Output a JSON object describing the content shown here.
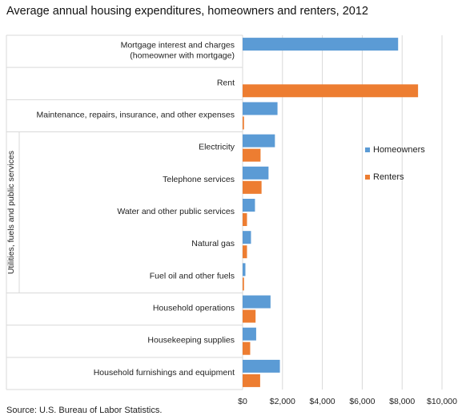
{
  "title": "Average annual housing expenditures, homeowners and renters, 2012",
  "source": "Source: U.S. Bureau of Labor Statistics.",
  "colors": {
    "homeowners": "#5B9BD5",
    "renters": "#ED7D31",
    "grid": "#D9D9D9"
  },
  "chart_data": {
    "type": "bar",
    "orientation": "horizontal",
    "categories": [
      "Mortgage interest and charges (homeowner with mortgage)",
      "Rent",
      "Maintenance, repairs, insurance, and other expenses",
      "Electricity",
      "Telephone services",
      "Water and other public services",
      "Natural gas",
      "Fuel oil and other fuels",
      "Household operations",
      "Housekeeping supplies",
      "Household furnishings and equipment"
    ],
    "category_lines": [
      [
        "Mortgage interest and charges",
        "(homeowner with mortgage)"
      ],
      [
        "Rent"
      ],
      [
        "Maintenance, repairs, insurance, and other expenses"
      ],
      [
        "Electricity"
      ],
      [
        "Telephone services"
      ],
      [
        "Water and other public services"
      ],
      [
        "Natural gas"
      ],
      [
        "Fuel oil and other fuels"
      ],
      [
        "Household operations"
      ],
      [
        "Housekeeping supplies"
      ],
      [
        "Household furnishings and equipment"
      ]
    ],
    "group_label": "Utilities, fuels and public services",
    "group_span": [
      3,
      7
    ],
    "series": [
      {
        "name": "Homeowners",
        "values": [
          7800,
          0,
          1750,
          1620,
          1300,
          620,
          420,
          140,
          1400,
          680,
          1870
        ]
      },
      {
        "name": "Renters",
        "values": [
          0,
          8800,
          70,
          900,
          950,
          220,
          220,
          70,
          650,
          380,
          880
        ]
      }
    ],
    "xlim": [
      0,
      10000
    ],
    "xticks": [
      0,
      2000,
      4000,
      6000,
      8000,
      10000
    ],
    "xtick_labels": [
      "$0",
      "$2,000",
      "$4,000",
      "$6,000",
      "$8,000",
      "$10,000"
    ],
    "grid": true,
    "legend_position": "right"
  }
}
